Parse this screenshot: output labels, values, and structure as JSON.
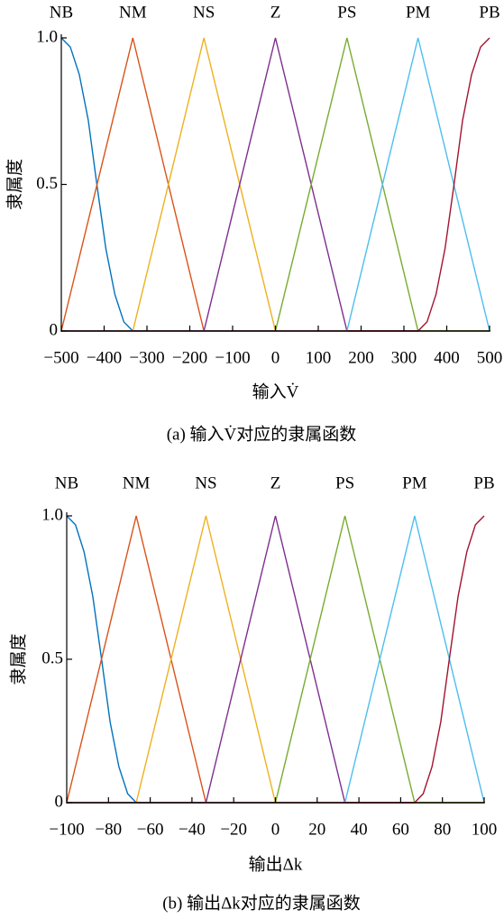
{
  "chart_data": [
    {
      "type": "line",
      "xlabel": "输入V̇",
      "ylabel": "隶属度",
      "caption": "(a) 输入V̇对应的隶属函数",
      "xlim": [
        -500,
        500
      ],
      "xticks": [
        {
          "value": -500,
          "label": "−500"
        },
        {
          "value": -400,
          "label": "−400"
        },
        {
          "value": -300,
          "label": "−300"
        },
        {
          "value": -200,
          "label": "−200"
        },
        {
          "value": -100,
          "label": "−100"
        },
        0,
        100,
        200,
        300,
        400,
        500
      ],
      "ylim": [
        0,
        1
      ],
      "yticks": [
        0,
        0.5,
        {
          "value": 1,
          "label": "1.0"
        }
      ],
      "series": [
        {
          "name": "NB",
          "color": "#0072bd",
          "x": [
            -500,
            -479,
            -458,
            -437,
            -417,
            -396,
            -375,
            -354,
            -333,
            500
          ],
          "values": [
            1,
            0.969,
            0.875,
            0.719,
            0.5,
            0.281,
            0.125,
            0.031,
            0,
            0
          ]
        },
        {
          "name": "NM",
          "color": "#d95319",
          "x": [
            -500,
            -333,
            -167,
            500
          ],
          "values": [
            0,
            1,
            0,
            0
          ]
        },
        {
          "name": "NS",
          "color": "#edb120",
          "x": [
            -500,
            -333,
            -167,
            0,
            500
          ],
          "values": [
            0,
            0,
            1,
            0,
            0
          ]
        },
        {
          "name": "Z",
          "color": "#7e2f8e",
          "x": [
            -500,
            -167,
            0,
            167,
            500
          ],
          "values": [
            0,
            0,
            1,
            0,
            0
          ]
        },
        {
          "name": "PS",
          "color": "#77ac30",
          "x": [
            -500,
            0,
            167,
            333,
            500
          ],
          "values": [
            0,
            0,
            1,
            0,
            0
          ]
        },
        {
          "name": "PM",
          "color": "#4dbeee",
          "x": [
            -500,
            167,
            333,
            500
          ],
          "values": [
            0,
            0,
            1,
            0
          ]
        },
        {
          "name": "PB",
          "color": "#a2142f",
          "x": [
            -500,
            333,
            354,
            375,
            396,
            417,
            437,
            458,
            479,
            500
          ],
          "values": [
            0,
            0,
            0.031,
            0.125,
            0.281,
            0.5,
            0.719,
            0.875,
            0.969,
            1
          ]
        }
      ]
    },
    {
      "type": "line",
      "xlabel": "输出Δk",
      "ylabel": "隶属度",
      "caption": "(b) 输出Δk对应的隶属函数",
      "xlim": [
        -100,
        100
      ],
      "xticks": [
        {
          "value": -100,
          "label": "−100"
        },
        {
          "value": -80,
          "label": "−80"
        },
        {
          "value": -60,
          "label": "−60"
        },
        {
          "value": -40,
          "label": "−40"
        },
        {
          "value": -20,
          "label": "−20"
        },
        0,
        20,
        40,
        60,
        80,
        100
      ],
      "ylim": [
        0,
        1
      ],
      "yticks": [
        0,
        0.5,
        {
          "value": 1,
          "label": "1.0"
        }
      ],
      "series": [
        {
          "name": "NB",
          "color": "#0072bd",
          "x": [
            -100,
            -95.8,
            -91.7,
            -87.5,
            -83.3,
            -79.2,
            -75,
            -70.8,
            -66.7,
            100
          ],
          "values": [
            1,
            0.969,
            0.875,
            0.719,
            0.5,
            0.281,
            0.125,
            0.031,
            0,
            0
          ]
        },
        {
          "name": "NM",
          "color": "#d95319",
          "x": [
            -100,
            -66.7,
            -33.3,
            100
          ],
          "values": [
            0,
            1,
            0,
            0
          ]
        },
        {
          "name": "NS",
          "color": "#edb120",
          "x": [
            -100,
            -66.7,
            -33.3,
            0,
            100
          ],
          "values": [
            0,
            0,
            1,
            0,
            0
          ]
        },
        {
          "name": "Z",
          "color": "#7e2f8e",
          "x": [
            -100,
            -33.3,
            0,
            33.3,
            100
          ],
          "values": [
            0,
            0,
            1,
            0,
            0
          ]
        },
        {
          "name": "PS",
          "color": "#77ac30",
          "x": [
            -100,
            0,
            33.3,
            66.7,
            100
          ],
          "values": [
            0,
            0,
            1,
            0,
            0
          ]
        },
        {
          "name": "PM",
          "color": "#4dbeee",
          "x": [
            -100,
            33.3,
            66.7,
            100
          ],
          "values": [
            0,
            0,
            1,
            0
          ]
        },
        {
          "name": "PB",
          "color": "#a2142f",
          "x": [
            -100,
            66.7,
            70.8,
            75,
            79.2,
            83.3,
            87.5,
            91.7,
            95.8,
            100
          ],
          "values": [
            0,
            0,
            0.031,
            0.125,
            0.281,
            0.5,
            0.719,
            0.875,
            0.969,
            1
          ]
        }
      ]
    }
  ]
}
